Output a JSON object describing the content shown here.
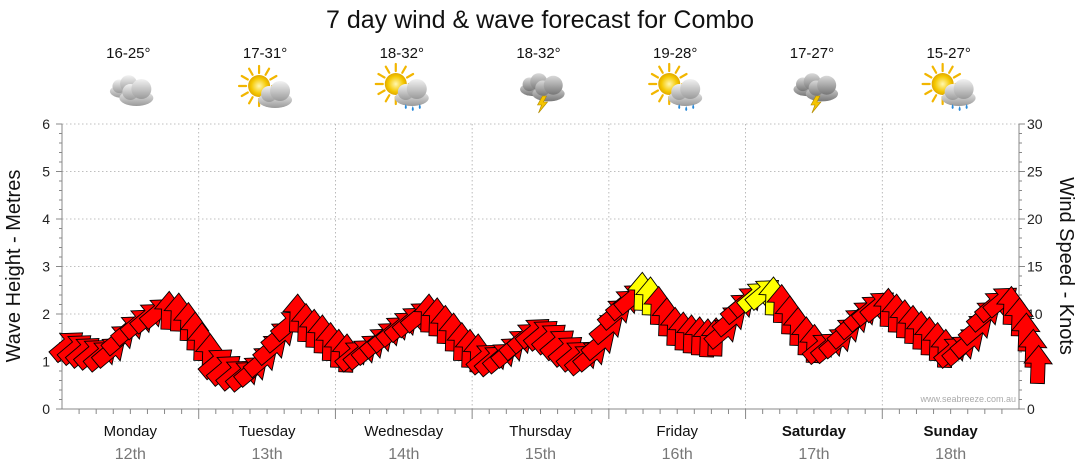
{
  "chart_data": {
    "type": "line",
    "title": "7 day wind & wave forecast for Combo",
    "ylabel_left": "Wave Height - Metres",
    "ylabel_right": "Wind Speed - Knots",
    "y_left_ticks": [
      "0",
      "1",
      "2",
      "3",
      "4",
      "5",
      "6"
    ],
    "y_right_ticks": [
      "0",
      "5",
      "10",
      "15",
      "20",
      "25",
      "30"
    ],
    "ylim_left": [
      0,
      6
    ],
    "ylim_right": [
      0,
      30
    ],
    "credit": "www.seabreeze.com.au",
    "days": [
      {
        "day": "Monday",
        "date": "12th",
        "temp": "16-25°",
        "icon": "cloud-icon",
        "bold": false
      },
      {
        "day": "Tuesday",
        "date": "13th",
        "temp": "17-31°",
        "icon": "sun-cloud-icon",
        "bold": false
      },
      {
        "day": "Wednesday",
        "date": "14th",
        "temp": "18-32°",
        "icon": "sun-cloud-rain-icon",
        "bold": false
      },
      {
        "day": "Thursday",
        "date": "15th",
        "temp": "18-32°",
        "icon": "storm-cloud-icon",
        "bold": false
      },
      {
        "day": "Friday",
        "date": "16th",
        "temp": "19-28°",
        "icon": "sun-cloud-rain-icon",
        "bold": false
      },
      {
        "day": "Saturday",
        "date": "17th",
        "temp": "17-27°",
        "icon": "storm-cloud-icon",
        "bold": true
      },
      {
        "day": "Sunday",
        "date": "18th",
        "temp": "15-27°",
        "icon": "sun-cloud-rain-icon",
        "bold": true
      }
    ],
    "series": [
      {
        "name": "Wind Speed (knots)",
        "x_unit": "days from Monday 00:00",
        "points": [
          [
            0.05,
            6.8,
            "SE"
          ],
          [
            0.11,
            6.5,
            "SE"
          ],
          [
            0.17,
            6.2,
            "SE"
          ],
          [
            0.23,
            6.0,
            "SE"
          ],
          [
            0.3,
            5.8,
            "SE"
          ],
          [
            0.36,
            6.2,
            "SE"
          ],
          [
            0.43,
            7.5,
            "SE"
          ],
          [
            0.5,
            8.5,
            "SE"
          ],
          [
            0.57,
            9.2,
            "SE"
          ],
          [
            0.64,
            9.8,
            "SE"
          ],
          [
            0.71,
            10.3,
            "SE"
          ],
          [
            0.78,
            10.5,
            "S"
          ],
          [
            0.85,
            10.3,
            "S"
          ],
          [
            0.92,
            9.3,
            "S"
          ],
          [
            0.97,
            8.3,
            "S"
          ],
          [
            1.02,
            7.2,
            "S"
          ],
          [
            1.08,
            6.0,
            "S"
          ],
          [
            1.14,
            5.0,
            "SE"
          ],
          [
            1.2,
            4.3,
            "SE"
          ],
          [
            1.27,
            3.8,
            "SE"
          ],
          [
            1.34,
            3.7,
            "SE"
          ],
          [
            1.4,
            4.2,
            "SE"
          ],
          [
            1.47,
            5.2,
            "SE"
          ],
          [
            1.54,
            6.5,
            "SE"
          ],
          [
            1.6,
            7.8,
            "SE"
          ],
          [
            1.67,
            9.0,
            "SE"
          ],
          [
            1.72,
            10.2,
            "S"
          ],
          [
            1.78,
            9.2,
            "S"
          ],
          [
            1.84,
            8.6,
            "S"
          ],
          [
            1.9,
            8.0,
            "S"
          ],
          [
            1.96,
            7.2,
            "S"
          ],
          [
            2.02,
            6.5,
            "S"
          ],
          [
            2.08,
            6.0,
            "S"
          ],
          [
            2.14,
            5.8,
            "SE"
          ],
          [
            2.2,
            6.0,
            "SE"
          ],
          [
            2.26,
            6.5,
            "SE"
          ],
          [
            2.32,
            7.2,
            "SE"
          ],
          [
            2.38,
            7.8,
            "SE"
          ],
          [
            2.44,
            8.4,
            "SE"
          ],
          [
            2.5,
            8.9,
            "SE"
          ],
          [
            2.56,
            9.4,
            "SE"
          ],
          [
            2.62,
            9.9,
            "SE"
          ],
          [
            2.68,
            10.2,
            "S"
          ],
          [
            2.74,
            9.8,
            "S"
          ],
          [
            2.8,
            9.0,
            "S"
          ],
          [
            2.86,
            8.2,
            "S"
          ],
          [
            2.92,
            7.2,
            "S"
          ],
          [
            2.98,
            6.5,
            "S"
          ],
          [
            3.04,
            6.0,
            "S"
          ],
          [
            3.1,
            5.5,
            "SE"
          ],
          [
            3.16,
            5.3,
            "SE"
          ],
          [
            3.22,
            5.6,
            "SE"
          ],
          [
            3.28,
            6.2,
            "SE"
          ],
          [
            3.34,
            7.0,
            "SE"
          ],
          [
            3.4,
            7.7,
            "SE"
          ],
          [
            3.46,
            8.2,
            "SE"
          ],
          [
            3.52,
            8.0,
            "SE"
          ],
          [
            3.58,
            7.6,
            "SE"
          ],
          [
            3.64,
            7.0,
            "SE"
          ],
          [
            3.7,
            6.3,
            "SE"
          ],
          [
            3.76,
            5.8,
            "SE"
          ],
          [
            3.82,
            5.4,
            "SE"
          ],
          [
            3.88,
            5.8,
            "SE"
          ],
          [
            3.94,
            7.0,
            "SE"
          ],
          [
            4.0,
            8.7,
            "SE"
          ],
          [
            4.06,
            10.2,
            "SE"
          ],
          [
            4.12,
            11.2,
            "SE"
          ],
          [
            4.18,
            11.8,
            "SE"
          ],
          [
            4.24,
            12.5,
            "S"
          ],
          [
            4.3,
            12.0,
            "S"
          ],
          [
            4.36,
            11.0,
            "S"
          ],
          [
            4.42,
            9.8,
            "S"
          ],
          [
            4.48,
            8.8,
            "S"
          ],
          [
            4.54,
            8.3,
            "S"
          ],
          [
            4.6,
            8.0,
            "S"
          ],
          [
            4.66,
            7.8,
            "S"
          ],
          [
            4.72,
            7.6,
            "S"
          ],
          [
            4.78,
            7.7,
            "S"
          ],
          [
            4.84,
            8.2,
            "SE"
          ],
          [
            4.9,
            9.5,
            "SE"
          ],
          [
            4.96,
            10.8,
            "SE"
          ],
          [
            5.02,
            11.5,
            "SE"
          ],
          [
            5.08,
            12.0,
            "SE"
          ],
          [
            5.14,
            12.3,
            "SE"
          ],
          [
            5.2,
            12.0,
            "S"
          ],
          [
            5.26,
            11.2,
            "S"
          ],
          [
            5.32,
            10.0,
            "S"
          ],
          [
            5.38,
            8.8,
            "S"
          ],
          [
            5.44,
            7.8,
            "S"
          ],
          [
            5.5,
            7.0,
            "S"
          ],
          [
            5.56,
            6.6,
            "SE"
          ],
          [
            5.62,
            6.7,
            "SE"
          ],
          [
            5.68,
            7.2,
            "SE"
          ],
          [
            5.74,
            8.2,
            "SE"
          ],
          [
            5.8,
            9.2,
            "SE"
          ],
          [
            5.86,
            10.0,
            "SE"
          ],
          [
            5.92,
            10.6,
            "SE"
          ],
          [
            5.98,
            11.0,
            "SE"
          ],
          [
            6.04,
            10.8,
            "S"
          ],
          [
            6.1,
            10.2,
            "S"
          ],
          [
            6.16,
            9.6,
            "S"
          ],
          [
            6.22,
            9.0,
            "S"
          ],
          [
            6.28,
            8.4,
            "S"
          ],
          [
            6.34,
            7.8,
            "S"
          ],
          [
            6.4,
            7.2,
            "S"
          ],
          [
            6.46,
            6.5,
            "S"
          ],
          [
            6.52,
            6.2,
            "SE"
          ],
          [
            6.58,
            6.4,
            "SE"
          ],
          [
            6.64,
            7.2,
            "SE"
          ],
          [
            6.7,
            8.6,
            "SE"
          ],
          [
            6.76,
            10.0,
            "SE"
          ],
          [
            6.82,
            11.0,
            "SE"
          ],
          [
            6.88,
            11.5,
            "SE"
          ],
          [
            6.94,
            11.0,
            "S"
          ],
          [
            7.0,
            9.8,
            "S"
          ],
          [
            7.05,
            8.2,
            "S"
          ],
          [
            7.1,
            6.5,
            "S"
          ],
          [
            7.14,
            4.8,
            "S"
          ]
        ]
      }
    ]
  }
}
